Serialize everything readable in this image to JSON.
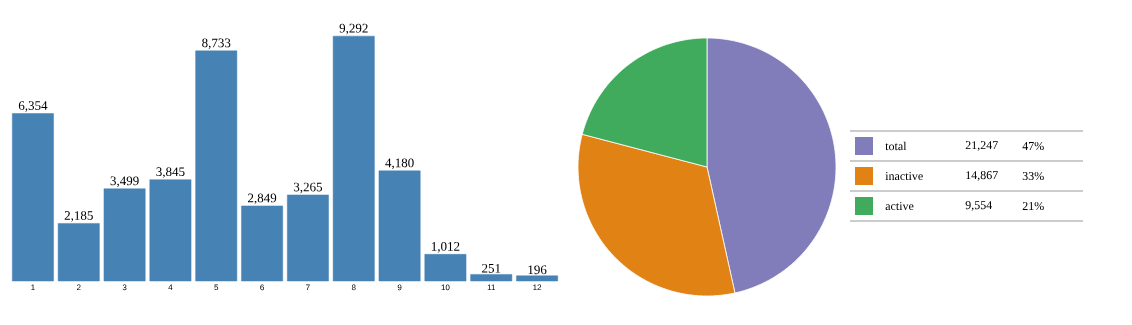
{
  "chart_data": [
    {
      "type": "bar",
      "categories": [
        "1",
        "2",
        "3",
        "4",
        "5",
        "6",
        "7",
        "8",
        "9",
        "10",
        "11",
        "12"
      ],
      "values": [
        6354,
        2185,
        3499,
        3845,
        8733,
        2849,
        3265,
        9292,
        4180,
        1012,
        251,
        196
      ],
      "color": "#4682b4",
      "value_labels": [
        "6,354",
        "2,185",
        "3,499",
        "3,845",
        "8,733",
        "2,849",
        "3,265",
        "9,292",
        "4,180",
        "1,012",
        "251",
        "196"
      ]
    },
    {
      "type": "pie",
      "categories": [
        "total",
        "inactive",
        "active"
      ],
      "values": [
        21247,
        14867,
        9554
      ],
      "colors": [
        "#807dba",
        "#e08214",
        "#41ab5d"
      ],
      "value_labels": [
        "21,247",
        "14,867",
        "9,554"
      ],
      "annotations": [
        "47%",
        "33%",
        "21%"
      ],
      "legend": "right"
    }
  ]
}
